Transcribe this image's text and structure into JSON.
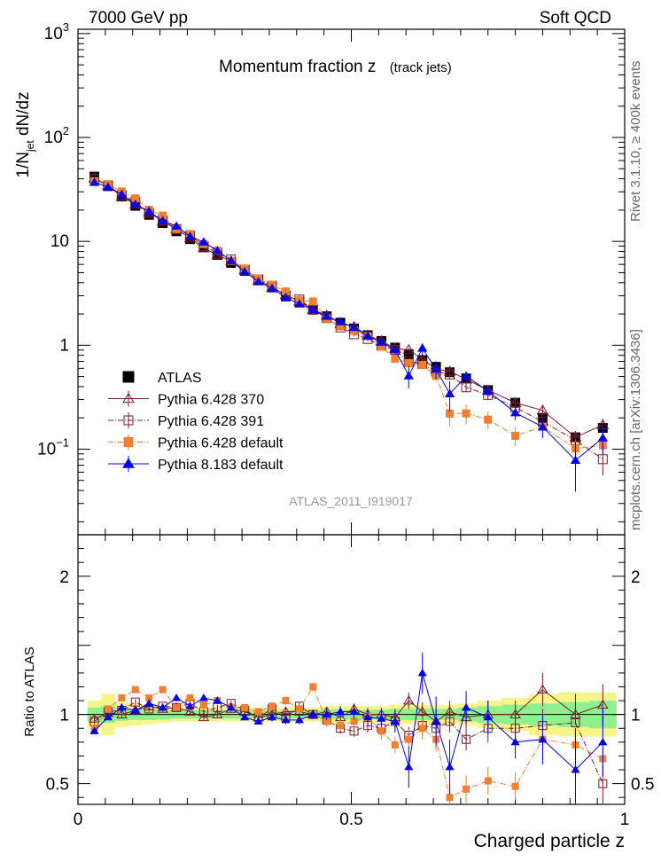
{
  "header": {
    "left": "7000 GeV pp",
    "right": "Soft QCD"
  },
  "side_text": {
    "rivet": "Rivet 3.1.10, ≥ 400k events",
    "mcplots": "mcplots.cern.ch [arXiv:1306.3436]"
  },
  "chart_data": {
    "type": "scatter",
    "title": "Momentum fraction z",
    "subtitle": "(track jets)",
    "analysis": "ATLAS_2011_I919017",
    "xlabel": "Charged particle z",
    "ylabel": "1/N",
    "ylabel_sub": "jet",
    "ylabel_tail": " dN/dz",
    "ratio_ylabel": "Ratio to ATLAS",
    "xlim": [
      0,
      1.0
    ],
    "ylim": [
      0.015,
      1100
    ],
    "ratio_ylim": [
      0.35,
      2.3
    ],
    "x_ticks": [
      {
        "v": 0,
        "t": "0"
      },
      {
        "v": 0.5,
        "t": "0.5"
      },
      {
        "v": 1.0,
        "t": "1"
      }
    ],
    "y_ticks": [
      {
        "v": 0.1,
        "t": "10",
        "e": "−1"
      },
      {
        "v": 1,
        "t": "1",
        "e": ""
      },
      {
        "v": 10,
        "t": "10",
        "e": ""
      },
      {
        "v": 100,
        "t": "10",
        "e": "2"
      },
      {
        "v": 1000,
        "t": "10",
        "e": "3"
      }
    ],
    "ratio_y_ticks": [
      {
        "v": 0.5,
        "t": "0.5"
      },
      {
        "v": 1,
        "t": "1"
      },
      {
        "v": 2,
        "t": "2"
      }
    ],
    "x": [
      0.03,
      0.055,
      0.08,
      0.105,
      0.13,
      0.155,
      0.18,
      0.205,
      0.23,
      0.255,
      0.28,
      0.305,
      0.33,
      0.355,
      0.38,
      0.405,
      0.43,
      0.455,
      0.48,
      0.505,
      0.53,
      0.555,
      0.58,
      0.605,
      0.63,
      0.655,
      0.68,
      0.71,
      0.75,
      0.8,
      0.85,
      0.91,
      0.96
    ],
    "band_yellow_halfwidth": [
      0.1,
      0.15,
      0.09,
      0.08,
      0.07,
      0.06,
      0.05,
      0.05,
      0.05,
      0.05,
      0.05,
      0.05,
      0.05,
      0.05,
      0.05,
      0.05,
      0.05,
      0.06,
      0.06,
      0.06,
      0.06,
      0.06,
      0.07,
      0.07,
      0.07,
      0.07,
      0.07,
      0.08,
      0.1,
      0.12,
      0.15,
      0.16,
      0.16
    ],
    "band_green_halfwidth": [
      0.05,
      0.06,
      0.045,
      0.04,
      0.04,
      0.035,
      0.03,
      0.03,
      0.03,
      0.03,
      0.03,
      0.03,
      0.03,
      0.03,
      0.03,
      0.03,
      0.03,
      0.035,
      0.035,
      0.035,
      0.035,
      0.035,
      0.04,
      0.04,
      0.04,
      0.04,
      0.04,
      0.05,
      0.06,
      0.07,
      0.08,
      0.09,
      0.1
    ],
    "series": [
      {
        "name": "ATLAS",
        "marker": "square",
        "color": "#000000",
        "values": [
          42,
          34,
          27,
          22,
          18,
          15,
          12.5,
          10.5,
          8.8,
          7.4,
          6.2,
          5.2,
          4.3,
          3.6,
          3.0,
          2.6,
          2.2,
          1.9,
          1.65,
          1.45,
          1.25,
          1.1,
          0.95,
          0.82,
          0.72,
          0.62,
          0.55,
          0.48,
          0.37,
          0.28,
          0.2,
          0.13,
          0.16
        ],
        "err": [
          0,
          0,
          0,
          0,
          0,
          0,
          0,
          0,
          0,
          0,
          0,
          0,
          0,
          0,
          0,
          0,
          0,
          0,
          0,
          0,
          0,
          0,
          0,
          0,
          0,
          0,
          0,
          0,
          0,
          0,
          0,
          0,
          0
        ]
      },
      {
        "name": "Pythia 6.428 370",
        "marker": "triangle-open",
        "color": "#7b1b2a",
        "dash": "",
        "ratio": [
          0.97,
          1.01,
          1.0,
          1.03,
          1.06,
          1.04,
          1.05,
          1.02,
          0.98,
          1.0,
          1.04,
          1.02,
          0.98,
          1.0,
          1.02,
          1.02,
          1.0,
          1.02,
          0.98,
          1.04,
          1.0,
          1.0,
          0.98,
          1.1,
          1.02,
          0.95,
          1.02,
          0.98,
          1.0,
          1.0,
          1.18,
          1.0,
          1.07
        ],
        "rerr": [
          0.02,
          0.02,
          0.02,
          0.02,
          0.02,
          0.02,
          0.02,
          0.02,
          0.02,
          0.02,
          0.02,
          0.02,
          0.02,
          0.02,
          0.03,
          0.03,
          0.03,
          0.03,
          0.04,
          0.04,
          0.05,
          0.05,
          0.06,
          0.06,
          0.07,
          0.08,
          0.08,
          0.08,
          0.1,
          0.1,
          0.12,
          0.15,
          0.15
        ]
      },
      {
        "name": "Pythia 6.428 391",
        "marker": "square-open",
        "color": "#7b1b2a",
        "dash": "6,2,1,2",
        "ratio": [
          0.95,
          1.02,
          1.03,
          1.09,
          1.04,
          1.06,
          1.05,
          1.08,
          1.02,
          1.05,
          1.08,
          1.03,
          0.98,
          1.04,
          0.98,
          1.06,
          1.0,
          0.96,
          0.9,
          0.88,
          0.92,
          0.9,
          0.95,
          0.85,
          0.92,
          0.9,
          0.95,
          0.82,
          0.9,
          0.9,
          0.92,
          0.94,
          0.5
        ],
        "rerr": [
          0.02,
          0.02,
          0.02,
          0.02,
          0.02,
          0.02,
          0.02,
          0.02,
          0.02,
          0.02,
          0.02,
          0.02,
          0.02,
          0.02,
          0.03,
          0.03,
          0.03,
          0.03,
          0.04,
          0.04,
          0.05,
          0.05,
          0.06,
          0.06,
          0.07,
          0.08,
          0.08,
          0.08,
          0.1,
          0.1,
          0.12,
          0.15,
          0.15
        ]
      },
      {
        "name": "Pythia 6.428 default",
        "marker": "square",
        "color": "#f08030",
        "dash": "6,2,1,2",
        "ratio": [
          0.9,
          1.04,
          1.12,
          1.18,
          1.12,
          1.18,
          1.05,
          1.12,
          1.07,
          1.1,
          1.05,
          1.05,
          1.02,
          1.06,
          1.1,
          1.04,
          1.2,
          0.95,
          0.92,
          0.95,
          0.98,
          0.88,
          0.78,
          0.82,
          0.9,
          0.82,
          0.4,
          0.46,
          0.52,
          0.48,
          0.82,
          0.78,
          0.68
        ],
        "rerr": [
          0.02,
          0.02,
          0.02,
          0.02,
          0.02,
          0.02,
          0.02,
          0.02,
          0.02,
          0.02,
          0.02,
          0.02,
          0.02,
          0.03,
          0.03,
          0.03,
          0.03,
          0.04,
          0.04,
          0.05,
          0.05,
          0.06,
          0.06,
          0.07,
          0.08,
          0.09,
          0.1,
          0.1,
          0.1,
          0.1,
          0.12,
          0.15,
          0.15
        ]
      },
      {
        "name": "Pythia 8.183 default",
        "marker": "triangle",
        "color": "#0000ee",
        "dash": "",
        "ratio": [
          0.88,
          0.98,
          1.05,
          1.03,
          1.08,
          1.05,
          1.12,
          1.06,
          1.12,
          1.1,
          1.05,
          0.98,
          0.95,
          0.98,
          0.96,
          0.96,
          1.0,
          1.0,
          1.02,
          1.02,
          0.98,
          0.97,
          0.95,
          0.62,
          1.3,
          0.95,
          0.62,
          1.05,
          0.98,
          0.8,
          0.82,
          0.6,
          0.8
        ],
        "rerr": [
          0.02,
          0.02,
          0.02,
          0.02,
          0.02,
          0.02,
          0.02,
          0.02,
          0.02,
          0.02,
          0.02,
          0.02,
          0.02,
          0.03,
          0.03,
          0.03,
          0.03,
          0.04,
          0.04,
          0.05,
          0.05,
          0.06,
          0.08,
          0.15,
          0.15,
          0.18,
          0.2,
          0.12,
          0.12,
          0.12,
          0.18,
          0.3,
          0.25
        ]
      }
    ]
  }
}
